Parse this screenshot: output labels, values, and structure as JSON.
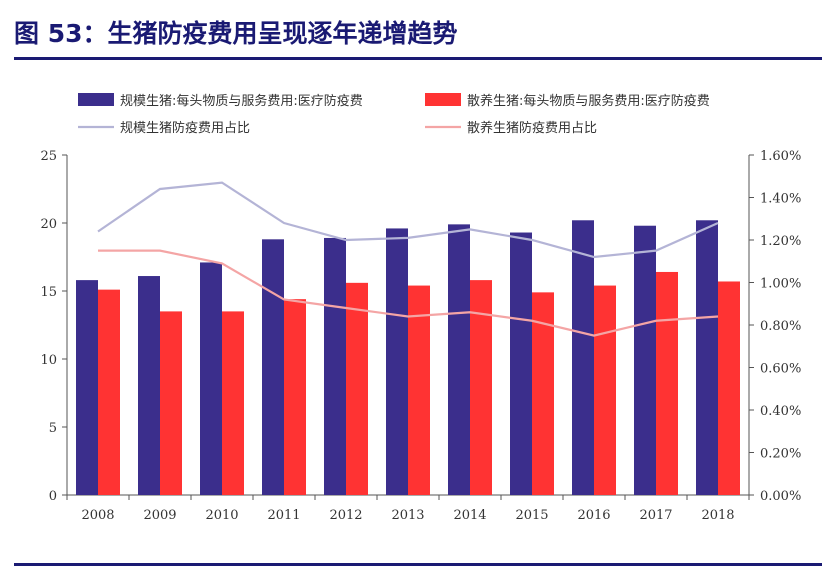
{
  "figure_title": "图 53：生猪防疫费用呈现逐年递增趋势",
  "chart_data": {
    "type": "bar",
    "categories": [
      "2008",
      "2009",
      "2010",
      "2011",
      "2012",
      "2013",
      "2014",
      "2015",
      "2016",
      "2017",
      "2018"
    ],
    "series": [
      {
        "name": "规模生猪:每头物质与服务费用:医疗防疫费",
        "kind": "bar",
        "axis": "left",
        "color": "#3b2e8c",
        "values": [
          15.8,
          16.1,
          17.1,
          18.8,
          18.9,
          19.6,
          19.9,
          19.3,
          20.2,
          19.8,
          20.2
        ]
      },
      {
        "name": "散养生猪:每头物质与服务费用:医疗防疫费",
        "kind": "bar",
        "axis": "left",
        "color": "#ff3333",
        "values": [
          15.1,
          13.5,
          13.5,
          14.4,
          15.6,
          15.4,
          15.8,
          14.9,
          15.4,
          16.4,
          15.7
        ]
      },
      {
        "name": "规模生猪防疫费用占比",
        "kind": "line",
        "axis": "right",
        "color": "#b4b4d6",
        "values": [
          1.24,
          1.44,
          1.47,
          1.28,
          1.2,
          1.21,
          1.25,
          1.2,
          1.12,
          1.15,
          1.28
        ]
      },
      {
        "name": "散养生猪防疫费用占比",
        "kind": "line",
        "axis": "right",
        "color": "#f4a5a5",
        "values": [
          1.15,
          1.15,
          1.09,
          0.92,
          0.88,
          0.84,
          0.86,
          0.82,
          0.75,
          0.82,
          0.84
        ]
      }
    ],
    "y_left": {
      "min": 0,
      "max": 25,
      "ticks": [
        "0",
        "5",
        "10",
        "15",
        "20",
        "25"
      ]
    },
    "y_right": {
      "min": 0,
      "max": 1.6,
      "unit": "%",
      "ticks": [
        "0.00%",
        "0.20%",
        "0.40%",
        "0.60%",
        "0.80%",
        "1.00%",
        "1.20%",
        "1.40%",
        "1.60%"
      ]
    },
    "legend_position": "top",
    "grid": false
  }
}
